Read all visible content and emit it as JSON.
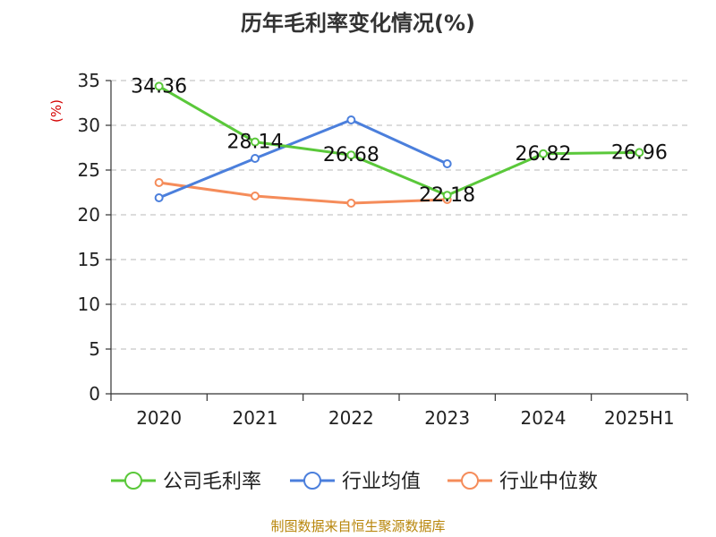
{
  "chart_data": {
    "type": "line",
    "title": "历年毛利率变化情况(%)",
    "ylabel": "(%)",
    "categories": [
      "2020",
      "2021",
      "2022",
      "2023",
      "2024",
      "2025H1"
    ],
    "ylim": [
      0,
      35
    ],
    "yticks": [
      0,
      5,
      10,
      15,
      20,
      25,
      30,
      35
    ],
    "grid": true,
    "legend_position": "bottom",
    "series": [
      {
        "name": "公司毛利率",
        "color": "#5ac83a",
        "values": [
          34.36,
          28.14,
          26.68,
          22.18,
          26.82,
          26.96
        ],
        "labels": [
          "34.36",
          "28.14",
          "26.68",
          "22.18",
          "26.82",
          "26.96"
        ]
      },
      {
        "name": "行业均值",
        "color": "#4b7fdc",
        "values": [
          21.9,
          26.3,
          30.6,
          25.7,
          null,
          null
        ]
      },
      {
        "name": "行业中位数",
        "color": "#f58c5a",
        "values": [
          23.6,
          22.1,
          21.3,
          21.7,
          null,
          null
        ]
      }
    ]
  },
  "source": "制图数据来自恒生聚源数据库"
}
